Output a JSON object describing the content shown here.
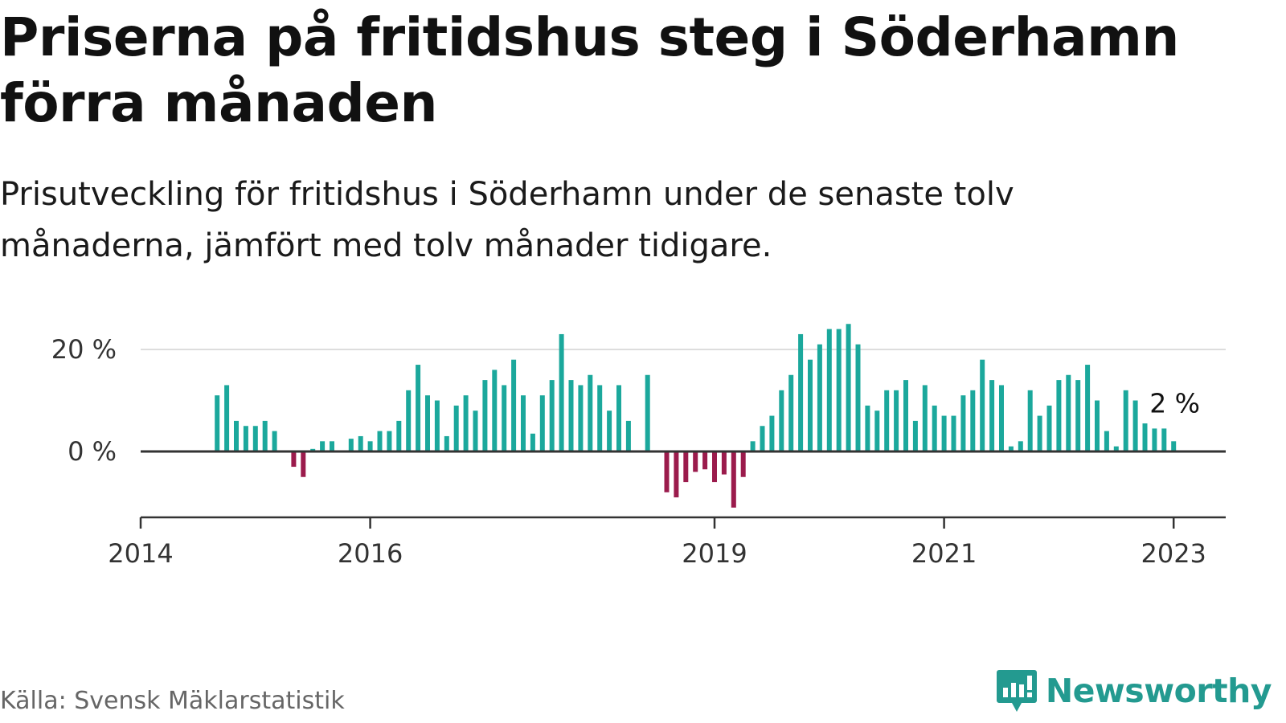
{
  "title": "Priserna på fritidshus steg i Söderhamn förra månaden",
  "subtitle": "Prisutveckling för fritidshus i Söderhamn under de senaste tolv månaderna, jämfört med tolv månader tidigare.",
  "source": "Källa: Svensk Mäklarstatistik",
  "brand": {
    "name": "Newsworthy",
    "logo_icon": "bar-chart-speech-bubble-icon"
  },
  "colors": {
    "positive": "#1ba89c",
    "negative": "#9b1b4c",
    "grid": "#dddddd",
    "axis": "#333333"
  },
  "chart_data": {
    "type": "bar",
    "x_unit": "month",
    "y_unit": "%",
    "ylim": [
      -14,
      28
    ],
    "y_ticks": [
      0,
      20
    ],
    "y_tick_labels": [
      "0 %",
      "20 %"
    ],
    "x_ticks": [
      2014,
      2016,
      2019,
      2021,
      2023
    ],
    "x_tick_labels": [
      "2014",
      "2016",
      "2019",
      "2021",
      "2023"
    ],
    "grid": true,
    "last_value_label": "2 %",
    "series": [
      {
        "values": [
          null,
          null,
          null,
          null,
          null,
          null,
          null,
          null,
          11,
          13,
          6,
          5,
          5,
          6,
          4,
          null,
          -3,
          -5,
          0.5,
          2,
          2,
          null,
          2.5,
          3,
          2,
          4,
          4,
          6,
          12,
          17,
          11,
          10,
          3,
          9,
          11,
          8,
          14,
          16,
          13,
          18,
          11,
          3.5,
          11,
          14,
          23,
          14,
          13,
          15,
          13,
          8,
          13,
          6,
          null,
          15,
          null,
          -8,
          -9,
          -6,
          -4,
          -3.5,
          -6,
          -4.5,
          -11,
          -5,
          2,
          5,
          7,
          12,
          15,
          23,
          18,
          21,
          24,
          24,
          25,
          21,
          9,
          8,
          12,
          12,
          14,
          6,
          13,
          9,
          7,
          7,
          11,
          12,
          18,
          14,
          13,
          1,
          2,
          12,
          7,
          9,
          14,
          15,
          14,
          17,
          10,
          4,
          1,
          12,
          10,
          5.5,
          4.5,
          4.5,
          2
        ]
      }
    ]
  }
}
